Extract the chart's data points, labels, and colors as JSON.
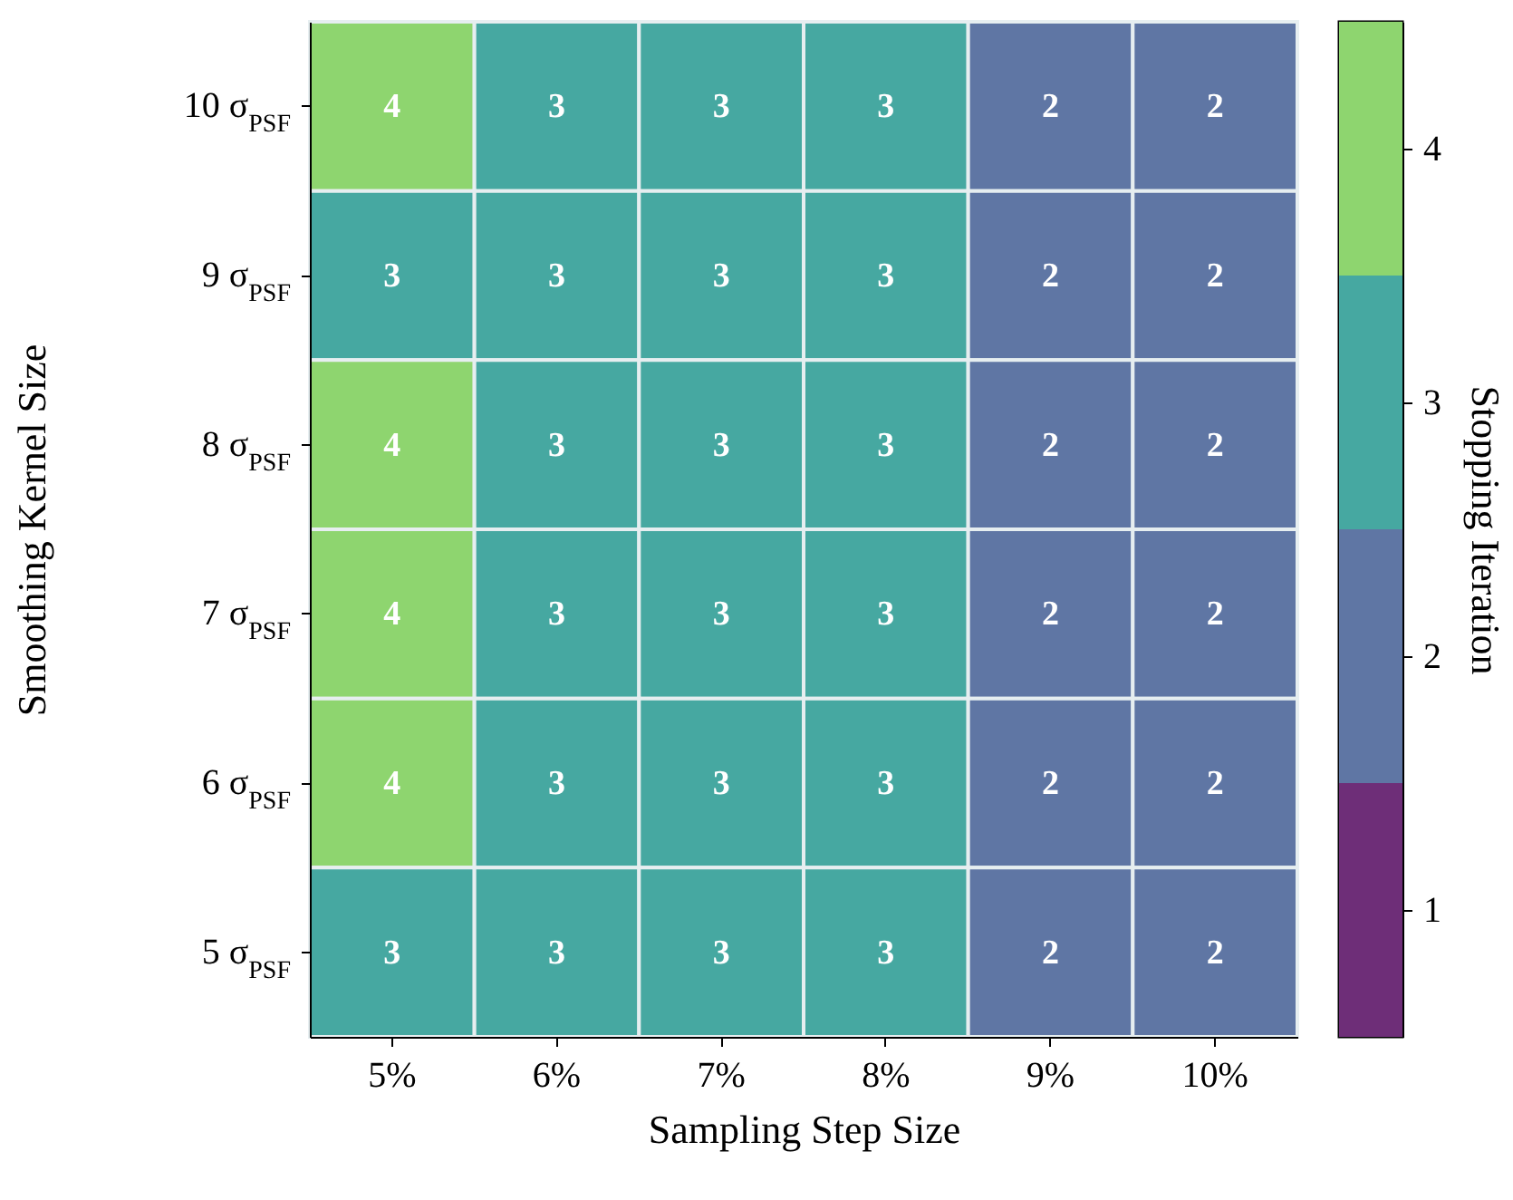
{
  "chart_data": {
    "type": "heatmap",
    "xlabel": "Sampling Step Size",
    "ylabel": "Smoothing Kernel Size",
    "clabel": "Stopping Iteration",
    "categories": [
      "5%",
      "6%",
      "7%",
      "8%",
      "9%",
      "10%"
    ],
    "y_categories": [
      "10 σ$_{PSF}$",
      "9 σ$_{PSF}$",
      "8 σ$_{PSF}$",
      "7 σ$_{PSF}$",
      "6 σ$_{PSF}$",
      "5 σ$_{PSF}$"
    ],
    "cells": [
      [
        4,
        3,
        3,
        3,
        2,
        2
      ],
      [
        3,
        3,
        3,
        3,
        2,
        2
      ],
      [
        4,
        3,
        3,
        3,
        2,
        2
      ],
      [
        4,
        3,
        3,
        3,
        2,
        2
      ],
      [
        4,
        3,
        3,
        3,
        2,
        2
      ],
      [
        3,
        3,
        3,
        3,
        2,
        2
      ]
    ],
    "clim": [
      0.5,
      4.5
    ],
    "cticks": [
      1,
      2,
      3,
      4
    ],
    "colors": [
      "#6e2e78",
      "#5f76a4",
      "#46a8a1",
      "#8ed56f"
    ],
    "data_labels": true
  }
}
